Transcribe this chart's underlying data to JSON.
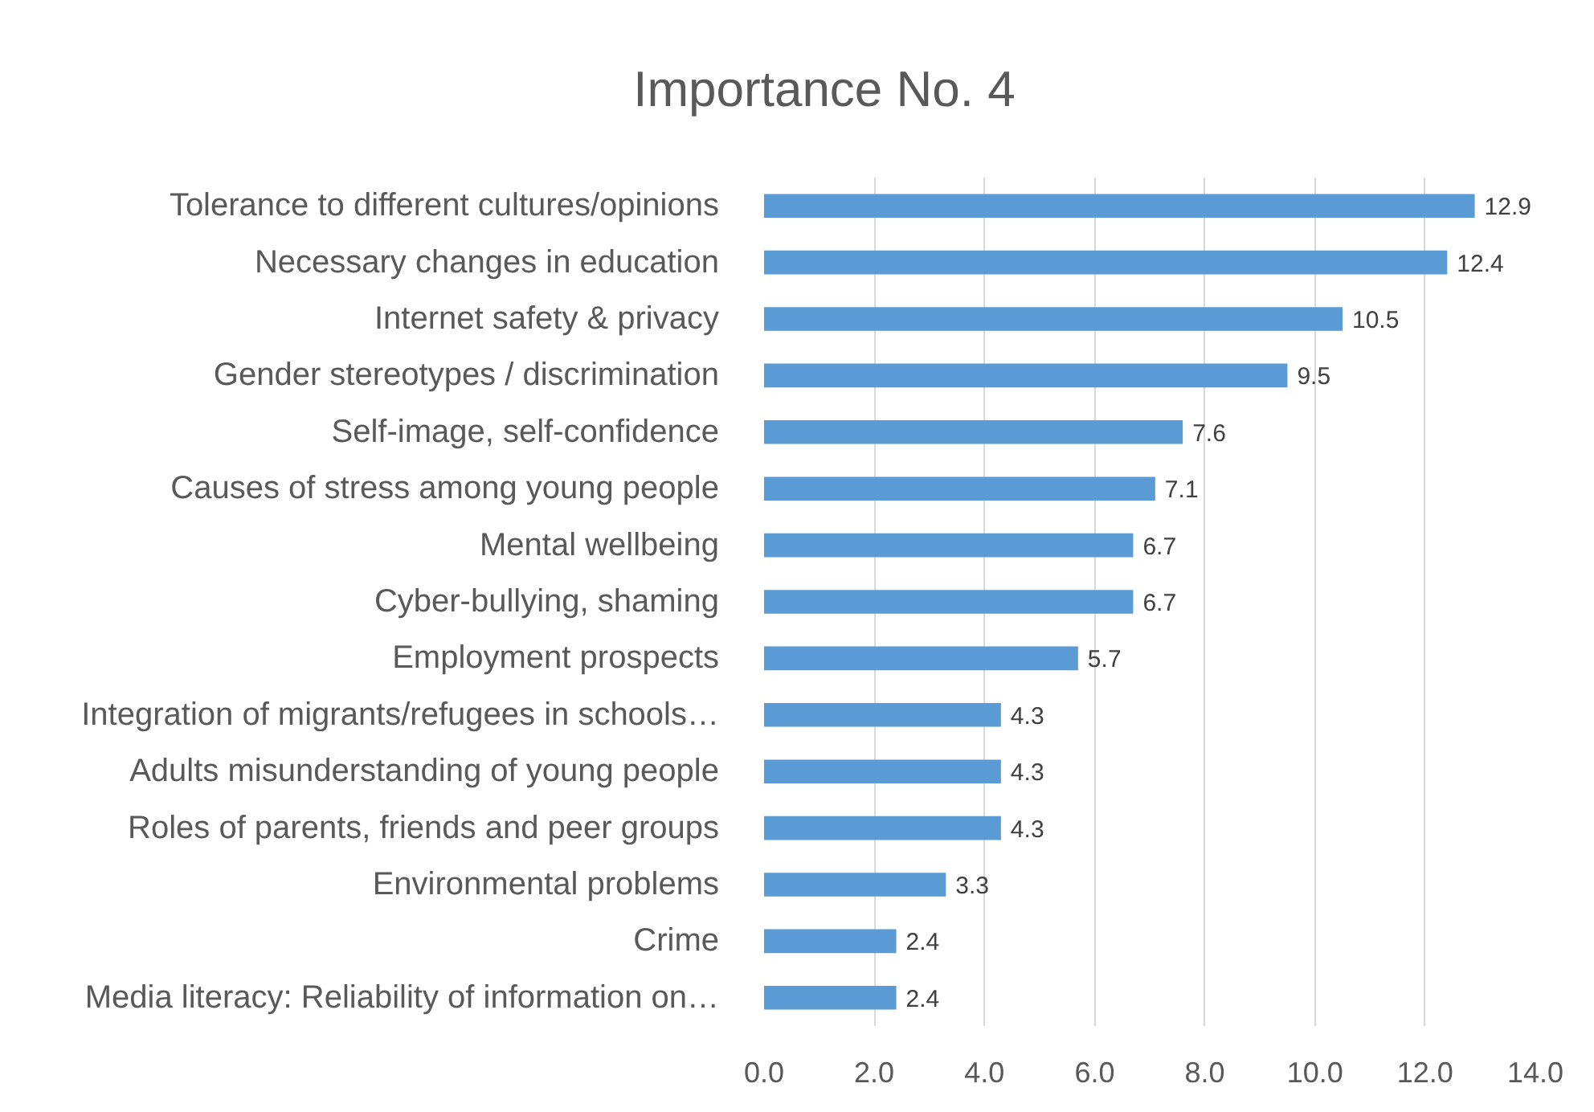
{
  "chart_data": {
    "type": "bar",
    "orientation": "horizontal",
    "title": "Importance No. 4",
    "categories": [
      "Tolerance to different cultures/opinions",
      "Necessary changes in education",
      "Internet safety & privacy",
      "Gender stereotypes / discrimination",
      "Self-image, self-confidence",
      "Causes of stress among young people",
      "Mental wellbeing",
      "Cyber-bullying, shaming",
      "Employment prospects",
      "Integration of migrants/refugees in schools…",
      "Adults misunderstanding of young people",
      "Roles of parents, friends and peer groups",
      "Environmental problems",
      "Crime",
      "Media literacy: Reliability of information on…"
    ],
    "values": [
      12.9,
      12.4,
      10.5,
      9.5,
      7.6,
      7.1,
      6.7,
      6.7,
      5.7,
      4.3,
      4.3,
      4.3,
      3.3,
      2.4,
      2.4
    ],
    "color": "#5b9bd5",
    "xlim": [
      0,
      14
    ],
    "xticks": [
      {
        "value": 0,
        "label": "0.0"
      },
      {
        "value": 2,
        "label": "2.0"
      },
      {
        "value": 4,
        "label": "4.0"
      },
      {
        "value": 6,
        "label": "6.0"
      },
      {
        "value": 8,
        "label": "8.0"
      },
      {
        "value": 10,
        "label": "10.0"
      },
      {
        "value": 12,
        "label": "12.0"
      },
      {
        "value": 14,
        "label": "14.0"
      }
    ],
    "grid": "x",
    "data_labels": true
  }
}
